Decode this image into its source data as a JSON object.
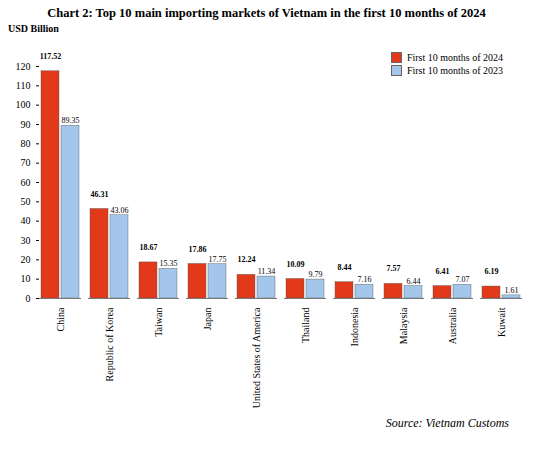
{
  "chart_data": {
    "type": "bar",
    "title": "Chart 2: Top 10 main importing markets of Vietnam in the first 10 months of 2024",
    "ylabel": "USD Billion",
    "source": "Source: Vietnam Customs",
    "categories": [
      "China",
      "Republic of Korea",
      "Taiwan",
      "Japan",
      "United States of America",
      "Thailand",
      "Indonesia",
      "Malaysia",
      "Australia",
      "Kuwait"
    ],
    "series": [
      {
        "name": "First 10 months of 2024",
        "color": "#e2391b",
        "values": [
          117.52,
          46.31,
          18.67,
          17.86,
          12.24,
          10.09,
          8.44,
          7.57,
          6.41,
          6.19
        ]
      },
      {
        "name": "First 10 months of 2023",
        "color": "#a3c6ea",
        "values": [
          89.35,
          43.06,
          15.35,
          17.75,
          11.34,
          9.79,
          7.16,
          6.44,
          7.07,
          1.61
        ]
      }
    ],
    "ylim": [
      0,
      120
    ],
    "yticks": [
      0,
      10,
      20,
      30,
      40,
      50,
      60,
      70,
      80,
      90,
      100,
      110,
      120
    ],
    "grid": false,
    "legend": "top-right",
    "data_labels": true
  }
}
